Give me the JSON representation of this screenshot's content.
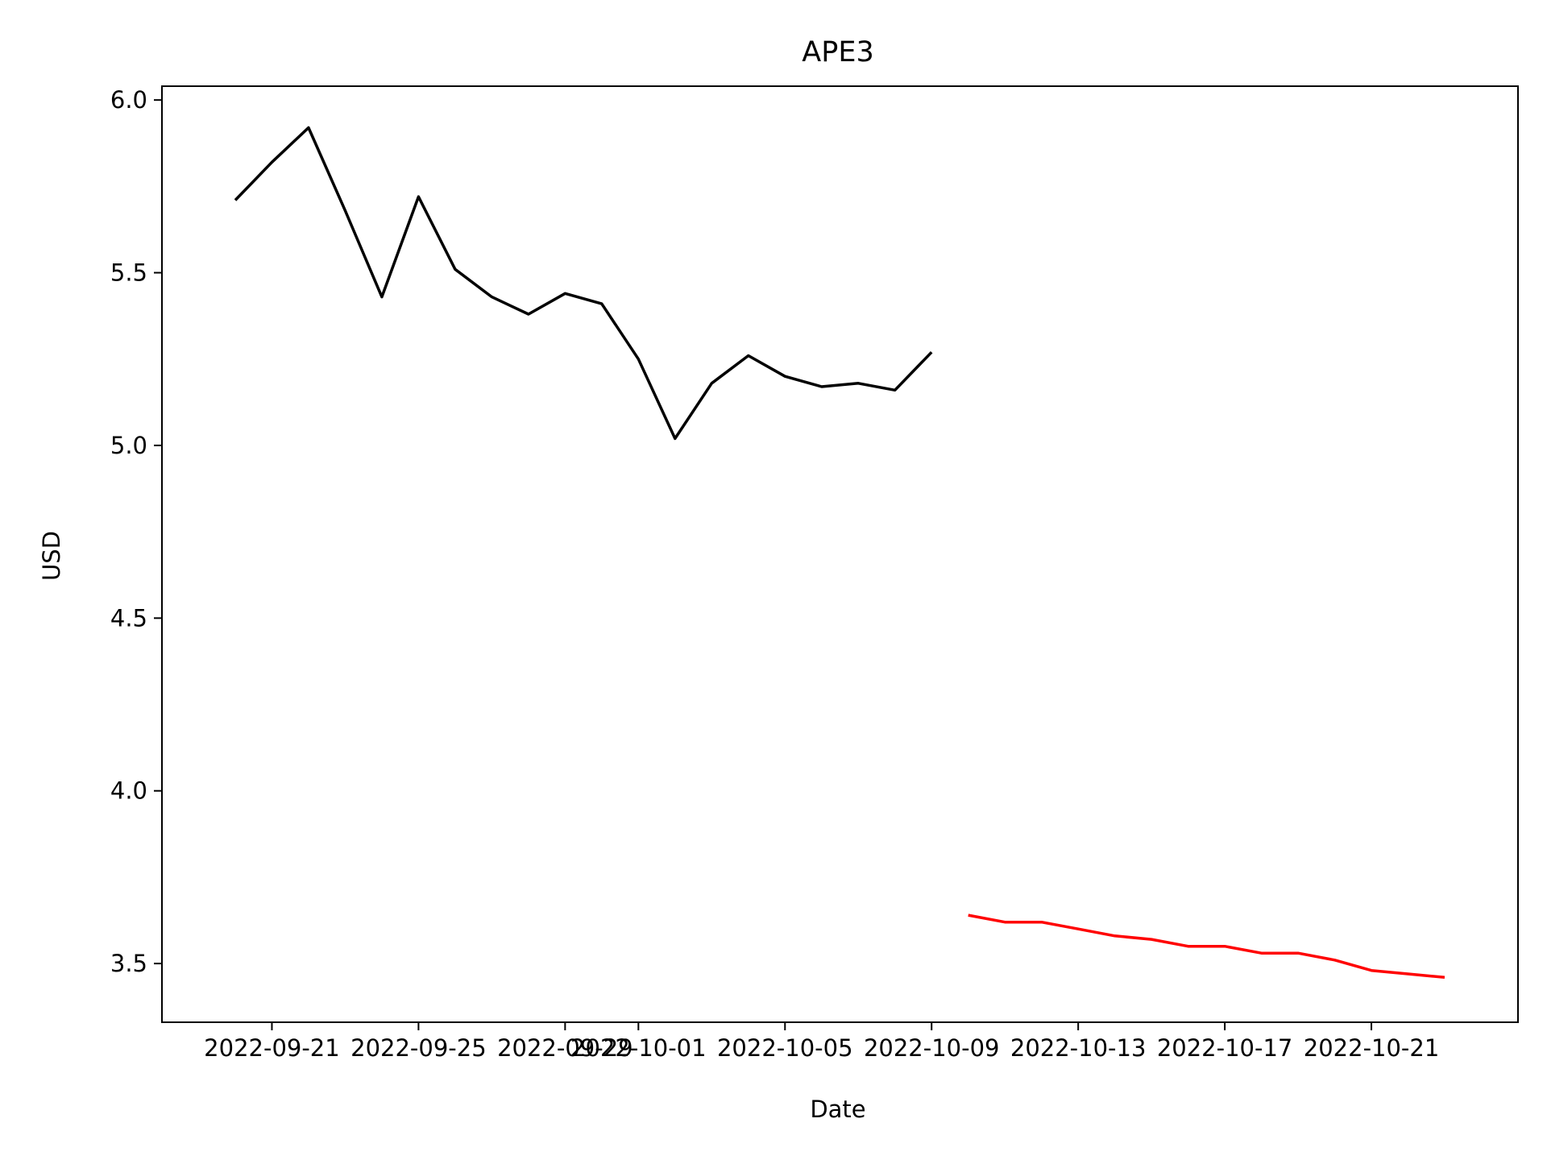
{
  "chart_data": {
    "type": "line",
    "title": "APE3",
    "xlabel": "Date",
    "ylabel": "USD",
    "xlim": [
      "2022-09-18",
      "2022-10-25"
    ],
    "ylim": [
      3.33,
      6.04
    ],
    "grid": false,
    "legend": "none",
    "x_ticks": [
      "2022-09-21",
      "2022-09-25",
      "2022-09-29",
      "2022-10-01",
      "2022-10-05",
      "2022-10-09",
      "2022-10-13",
      "2022-10-17",
      "2022-10-21"
    ],
    "y_ticks": [
      "3.5",
      "4.0",
      "4.5",
      "5.0",
      "5.5",
      "6.0"
    ],
    "series": [
      {
        "color": "#000000",
        "x": [
          "2022-09-20",
          "2022-09-21",
          "2022-09-22",
          "2022-09-23",
          "2022-09-24",
          "2022-09-25",
          "2022-09-26",
          "2022-09-27",
          "2022-09-28",
          "2022-09-29",
          "2022-09-30",
          "2022-10-01",
          "2022-10-02",
          "2022-10-03",
          "2022-10-04",
          "2022-10-05",
          "2022-10-06",
          "2022-10-07",
          "2022-10-08",
          "2022-10-09"
        ],
        "y": [
          5.71,
          5.82,
          5.92,
          5.68,
          5.43,
          5.72,
          5.51,
          5.43,
          5.38,
          5.44,
          5.41,
          5.25,
          5.02,
          5.18,
          5.26,
          5.2,
          5.17,
          5.18,
          5.16,
          5.27
        ]
      },
      {
        "color": "#ff0000",
        "x": [
          "2022-10-10",
          "2022-10-11",
          "2022-10-12",
          "2022-10-13",
          "2022-10-14",
          "2022-10-15",
          "2022-10-16",
          "2022-10-17",
          "2022-10-18",
          "2022-10-19",
          "2022-10-20",
          "2022-10-21",
          "2022-10-22",
          "2022-10-23"
        ],
        "y": [
          3.64,
          3.62,
          3.62,
          3.6,
          3.58,
          3.57,
          3.55,
          3.55,
          3.53,
          3.53,
          3.51,
          3.48,
          3.47,
          3.46
        ]
      }
    ]
  }
}
